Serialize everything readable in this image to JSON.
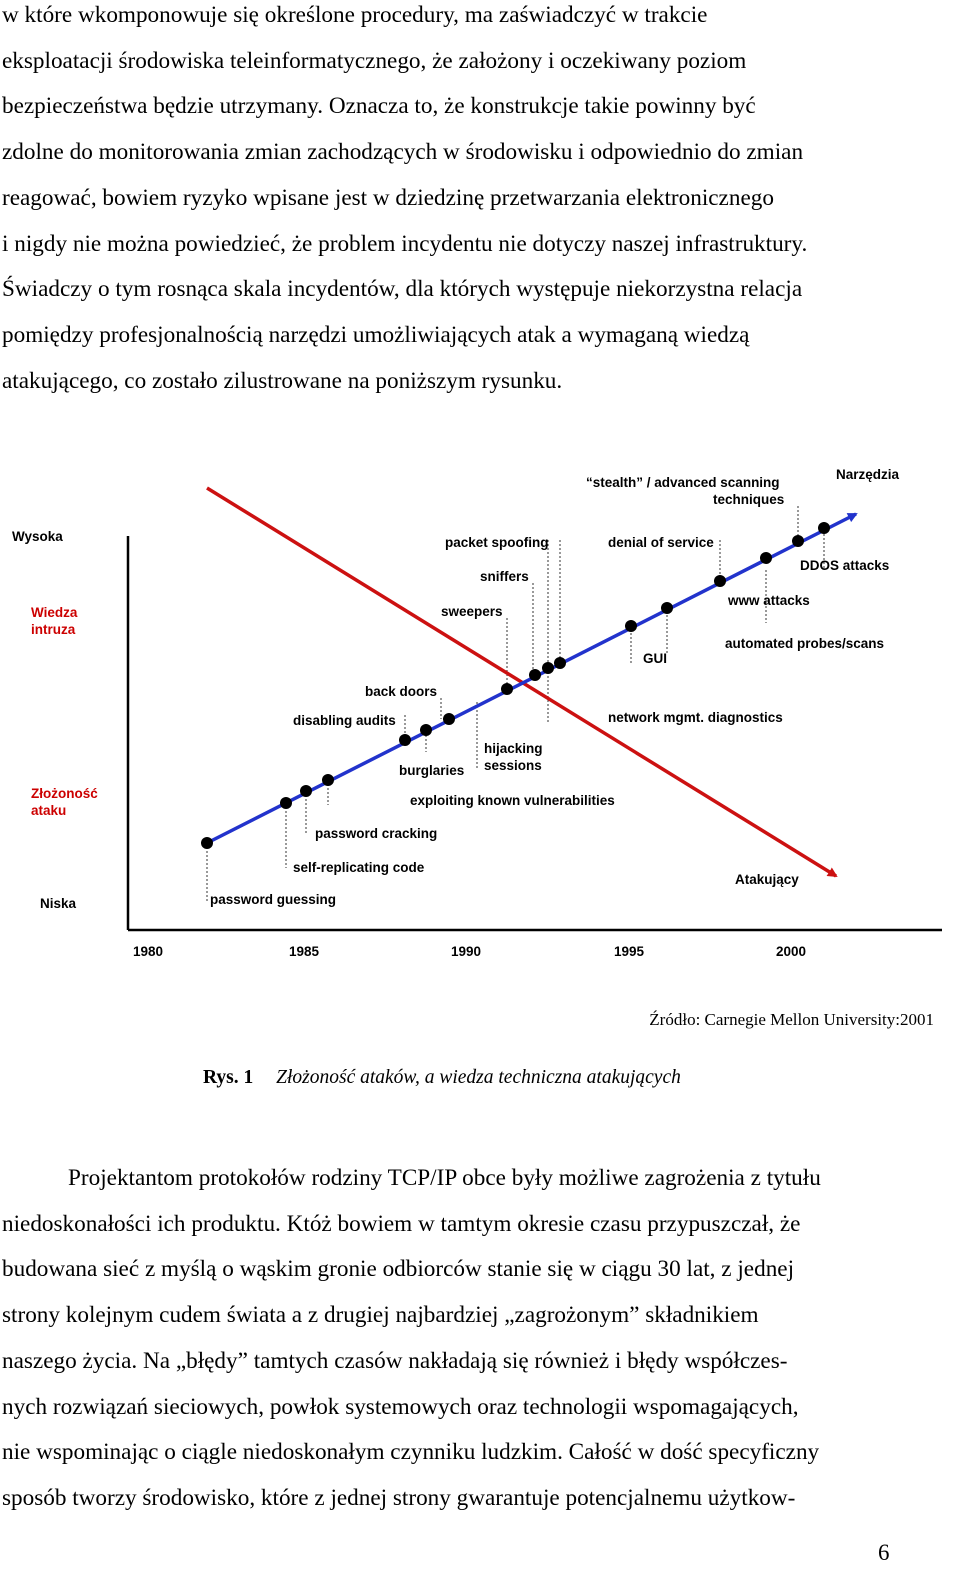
{
  "top_paragraph": [
    "w które wkomponowuje się określone procedury, ma zaświadczyć w trakcie",
    "eksploatacji środowiska teleinformatycznego, że założony i oczekiwany poziom",
    "bezpieczeństwa będzie utrzymany. Oznacza to, że konstrukcje takie powinny być",
    "zdolne do monitorowania zmian zachodzących w środowisku i odpowiednio do zmian",
    "reagować, bowiem ryzyko wpisane jest w dziedzinę przetwarzania elektronicznego",
    "i nigdy nie można powiedzieć, że problem incydentu nie dotyczy naszej infrastruktury.",
    "Świadczy o tym rosnąca skala incydentów, dla których występuje niekorzystna relacja",
    "pomiędzy profesjonalnością narzędzi umożliwiających atak a wymaganą wiedzą",
    "atakującego, co zostało zilustrowane na poniższym rysunku."
  ],
  "figure": {
    "y_labels": {
      "high": "Wysoka",
      "knowledge_1": "Wiedza",
      "knowledge_2": "intruza",
      "complexity_1": "Złożoność",
      "complexity_2": "ataku",
      "low": "Niska"
    },
    "x_ticks": [
      "1980",
      "1985",
      "1990",
      "1995",
      "2000"
    ],
    "series_labels": {
      "tools": "Narzędzia",
      "attacker": "Atakujący"
    },
    "events": {
      "password_guessing": "password guessing",
      "self_replicating": "self-replicating code",
      "password_cracking": "password cracking",
      "exploiting": "exploiting known vulnerabilities",
      "disabling_audits": "disabling audits",
      "back_doors": "back doors",
      "burglaries": "burglaries",
      "hijacking_1": "hijacking",
      "hijacking_2": "sessions",
      "sweepers": "sweepers",
      "sniffers": "sniffers",
      "packet_spoofing": "packet spoofing",
      "network_mgmt": "network mgmt. diagnostics",
      "gui": "GUI",
      "automated_probes": "automated probes/scans",
      "www_attacks": "www attacks",
      "denial_of_service": "denial of service",
      "ddos": "DDOS attacks",
      "stealth_1": "“stealth” / advanced scanning",
      "stealth_2": "techniques"
    },
    "colors": {
      "tools_line": "#2233cc",
      "attacker_line": "#cc1111",
      "axis": "#000000"
    }
  },
  "source": "Źródło: Carnegie Mellon University:2001",
  "caption": {
    "number": "Rys. 1",
    "title": "Złożoność ataków, a wiedza techniczna atakujących"
  },
  "bottom_paragraph": [
    "Projektantom protokołów rodziny TCP/IP obce były możliwe zagrożenia z tytułu",
    "niedoskonałości ich produktu. Któż bowiem w tamtym okresie czasu przypuszczał, że",
    "budowana sieć z myślą o wąskim gronie odbiorców stanie się w ciągu 30 lat, z jednej",
    "strony kolejnym cudem świata a z drugiej najbardziej „zagrożonym” składnikiem",
    "naszego życia. Na „błędy” tamtych czasów nakładają się również i błędy współczes-",
    "nych rozwiązań sieciowych, powłok systemowych oraz technologii wspomagających,",
    "nie wspominając o ciągle niedoskonałym czynniku ludzkim. Całość w dość specyficzny",
    "sposób tworzy środowisko, które z jednej strony gwarantuje potencjalnemu użytkow-"
  ],
  "page_number": "6"
}
